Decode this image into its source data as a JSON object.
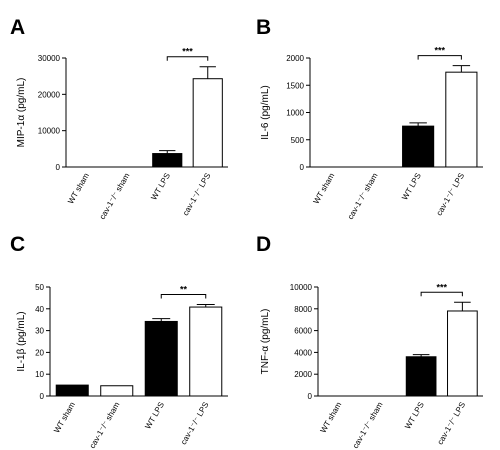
{
  "chart_data": [
    {
      "panel": "A",
      "type": "bar",
      "categories": [
        "WT sham",
        "cav-1⁻/⁻ sham",
        "WT LPS",
        "cav-1⁻/⁻ LPS"
      ],
      "values": [
        0,
        0,
        3700,
        24300
      ],
      "errors": [
        0,
        0,
        800,
        3300
      ],
      "bar_fills": [
        "#000000",
        "#ffffff",
        "#000000",
        "#ffffff"
      ],
      "ylabel": "MIP-1α (pg/mL)",
      "ylim": [
        0,
        30000
      ],
      "yticks": [
        0,
        10000,
        20000,
        30000
      ],
      "significance": {
        "from": 2,
        "to": 3,
        "label": "***"
      }
    },
    {
      "panel": "B",
      "type": "bar",
      "categories": [
        "WT sham",
        "cav-1⁻/⁻ sham",
        "WT LPS",
        "cav-1⁻/⁻ LPS"
      ],
      "values": [
        0,
        0,
        750,
        1740
      ],
      "errors": [
        0,
        0,
        60,
        120
      ],
      "bar_fills": [
        "#000000",
        "#ffffff",
        "#000000",
        "#ffffff"
      ],
      "ylabel": "IL-6 (pg/mL)",
      "ylim": [
        0,
        2000
      ],
      "yticks": [
        0,
        500,
        1000,
        1500,
        2000
      ],
      "significance": {
        "from": 2,
        "to": 3,
        "label": "***"
      }
    },
    {
      "panel": "C",
      "type": "bar",
      "categories": [
        "WT sham",
        "cav-1⁻/⁻ sham",
        "WT LPS",
        "cav-1⁻/⁻ LPS"
      ],
      "values": [
        5,
        4.7,
        34.2,
        40.8
      ],
      "errors": [
        0,
        0,
        1.3,
        1.2
      ],
      "bar_fills": [
        "#000000",
        "#ffffff",
        "#000000",
        "#ffffff"
      ],
      "ylabel": "IL-1β (pg/mL)",
      "ylim": [
        0,
        50
      ],
      "yticks": [
        0,
        10,
        20,
        30,
        40,
        50
      ],
      "significance": {
        "from": 2,
        "to": 3,
        "label": "**"
      }
    },
    {
      "panel": "D",
      "type": "bar",
      "categories": [
        "WT sham",
        "cav-1⁻/⁻ sham",
        "WT LPS",
        "cav-1⁻/⁻ LPS"
      ],
      "values": [
        0,
        0,
        3600,
        7800
      ],
      "errors": [
        0,
        0,
        200,
        800
      ],
      "bar_fills": [
        "#000000",
        "#ffffff",
        "#000000",
        "#ffffff"
      ],
      "ylabel": "TNF-α (pg/mL)",
      "ylim": [
        0,
        10000
      ],
      "yticks": [
        0,
        2000,
        4000,
        6000,
        8000,
        10000
      ],
      "significance": {
        "from": 2,
        "to": 3,
        "label": "***"
      }
    }
  ]
}
